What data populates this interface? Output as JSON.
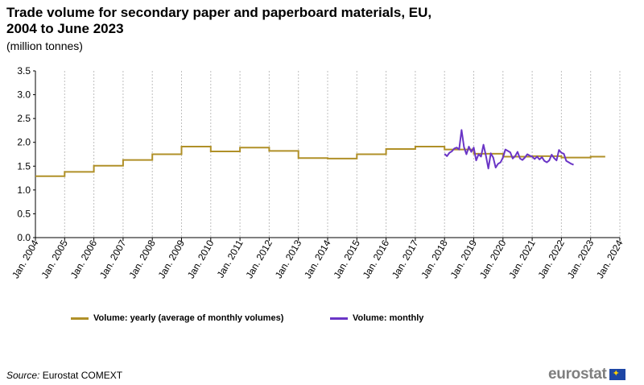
{
  "header": {
    "title": "Trade volume for secondary paper and paperboard materials, EU, 2004 to June 2023",
    "subtitle": "(million tonnes)"
  },
  "footer": {
    "source_label": "Source:",
    "source_text": "Eurostat COMEXT",
    "logo_text": "eurostat",
    "logo_flag_icon": "eu-flag-icon"
  },
  "colors": {
    "yearly": "#b09028",
    "monthly": "#6a35c6",
    "grid": "#bfbfbf"
  },
  "chart_data": {
    "type": "line",
    "ylim": [
      0,
      3.5
    ],
    "yticks": [
      "0.0",
      "0.5",
      "1.0",
      "1.5",
      "2.0",
      "2.5",
      "3.0",
      "3.5"
    ],
    "xticks": [
      "Jan. 2004",
      "Jan. 2005",
      "Jan. 2006",
      "Jan. 2007",
      "Jan. 2008",
      "Jan. 2009",
      "Jan. 2010",
      "Jan. 2011",
      "Jan. 2012",
      "Jan. 2013",
      "Jan. 2014",
      "Jan. 2015",
      "Jan. 2016",
      "Jan. 2017",
      "Jan. 2018",
      "Jan. 2019",
      "Jan. 2020",
      "Jan. 2021",
      "Jan. 2022",
      "Jan. 2023",
      "Jan. 2024"
    ],
    "grid": "vertical-dashed",
    "legend_position": "bottom",
    "series": [
      {
        "name": "Volume: yearly (average of monthly volumes)",
        "style": "step",
        "years": [
          2004,
          2005,
          2006,
          2007,
          2008,
          2009,
          2010,
          2011,
          2012,
          2013,
          2014,
          2015,
          2016,
          2017,
          2018,
          2019,
          2020,
          2021,
          2022,
          2023
        ],
        "values": [
          1.29,
          1.38,
          1.51,
          1.63,
          1.75,
          1.91,
          1.81,
          1.89,
          1.82,
          1.67,
          1.66,
          1.75,
          1.86,
          1.91,
          1.85,
          1.76,
          1.7,
          1.71,
          1.68,
          1.7
        ]
      },
      {
        "name": "Volume: monthly",
        "style": "line",
        "start": "2018-01",
        "values": [
          1.76,
          1.71,
          1.78,
          1.81,
          1.87,
          1.89,
          1.85,
          2.26,
          1.9,
          1.75,
          1.91,
          1.8,
          1.89,
          1.62,
          1.75,
          1.7,
          1.95,
          1.72,
          1.45,
          1.77,
          1.68,
          1.47,
          1.55,
          1.58,
          1.68,
          1.85,
          1.82,
          1.79,
          1.66,
          1.71,
          1.8,
          1.66,
          1.63,
          1.68,
          1.75,
          1.72,
          1.7,
          1.65,
          1.7,
          1.64,
          1.69,
          1.61,
          1.58,
          1.62,
          1.74,
          1.67,
          1.62,
          1.84,
          1.78,
          1.76,
          1.61,
          1.58,
          1.55,
          1.53
        ]
      }
    ]
  }
}
